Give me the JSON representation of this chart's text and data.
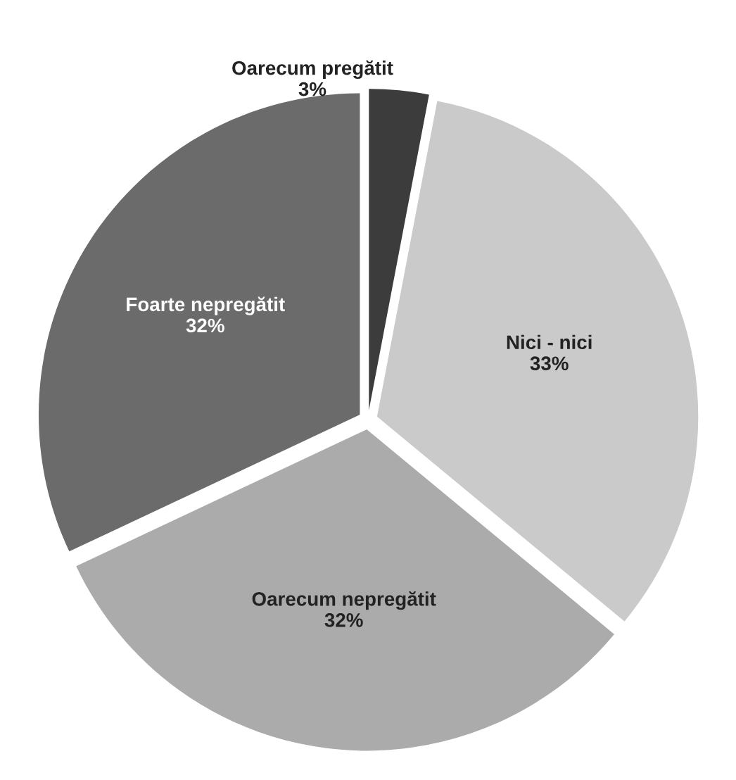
{
  "chart_data": {
    "type": "pie",
    "categories": [
      "Oarecum pregătit",
      "Nici - nici",
      "Oarecum nepregătit",
      "Foarte nepregătit"
    ],
    "values": [
      3,
      33,
      32,
      32
    ],
    "value_labels": [
      "3%",
      "33%",
      "32%",
      "32%"
    ],
    "colors": [
      "#3c3c3c",
      "#cacaca",
      "#ababab",
      "#6b6b6b"
    ]
  }
}
